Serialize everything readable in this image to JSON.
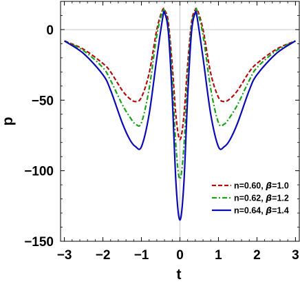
{
  "chart_data": {
    "type": "line",
    "title": "",
    "xlabel": "t",
    "ylabel": "p",
    "xlim": [
      -3.1,
      3.1
    ],
    "ylim": [
      -150,
      20
    ],
    "x_ticks": [
      -3,
      -2,
      -1,
      0,
      1,
      2,
      3
    ],
    "x_tick_labels": [
      "−3",
      "−2",
      "−1",
      "0",
      "1",
      "2",
      "3"
    ],
    "y_ticks": [
      0,
      -50,
      -100,
      -150
    ],
    "y_tick_labels": [
      "0",
      "−50",
      "−100",
      "−150"
    ],
    "grid": false,
    "reference_lines": {
      "x": 0,
      "y": 0
    },
    "legend_placement": "bottom-right",
    "series": [
      {
        "name": "n=0.60, β=1.0",
        "legend_parts": [
          "n=0.60, ",
          "β",
          "=1.0"
        ],
        "color": "#b50d0d",
        "style": "dashed",
        "x": [
          -3,
          -2.5,
          -2,
          -1.8,
          -1.5,
          -1.3,
          -1.15,
          -1.0,
          -0.8,
          -0.6,
          -0.45,
          -0.38,
          -0.3,
          -0.2,
          -0.1,
          0,
          0.1,
          0.2,
          0.3,
          0.38,
          0.45,
          0.6,
          0.8,
          1.0,
          1.15,
          1.3,
          1.5,
          1.8,
          2,
          2.5,
          3
        ],
        "y": [
          -8,
          -14,
          -24,
          -30,
          -43,
          -49,
          -51,
          -48,
          -31,
          0,
          14,
          13,
          5,
          -25,
          -62,
          -78,
          -62,
          -25,
          5,
          13,
          14,
          0,
          -31,
          -48,
          -51,
          -49,
          -43,
          -30,
          -24,
          -14,
          -8
        ]
      },
      {
        "name": "n=0.62, β=1.2",
        "legend_parts": [
          "n=0.62, ",
          "β",
          "=1.2"
        ],
        "color": "#1aa31a",
        "style": "dashdot",
        "x": [
          -3,
          -2.5,
          -2,
          -1.8,
          -1.5,
          -1.3,
          -1.15,
          -1.0,
          -0.8,
          -0.6,
          -0.45,
          -0.4,
          -0.3,
          -0.2,
          -0.1,
          0,
          0.1,
          0.2,
          0.3,
          0.4,
          0.45,
          0.6,
          0.8,
          1.0,
          1.15,
          1.3,
          1.5,
          1.8,
          2,
          2.5,
          3
        ],
        "y": [
          -8,
          -15,
          -27,
          -36,
          -53,
          -62,
          -67,
          -66,
          -42,
          -4,
          13,
          13,
          2,
          -35,
          -84,
          -106,
          -84,
          -35,
          2,
          13,
          13,
          -4,
          -42,
          -66,
          -67,
          -62,
          -53,
          -36,
          -27,
          -15,
          -8
        ]
      },
      {
        "name": "n=0.64, β=1.4",
        "legend_parts": [
          "n=0.64, ",
          "β",
          "=1.4"
        ],
        "color": "#0a0ab4",
        "style": "solid",
        "x": [
          -3,
          -2.5,
          -2,
          -1.8,
          -1.5,
          -1.3,
          -1.15,
          -1.0,
          -0.8,
          -0.6,
          -0.45,
          -0.4,
          -0.3,
          -0.2,
          -0.1,
          0,
          0.1,
          0.2,
          0.3,
          0.4,
          0.45,
          0.6,
          0.8,
          1.0,
          1.15,
          1.3,
          1.5,
          1.8,
          2,
          2.5,
          3
        ],
        "y": [
          -8,
          -17,
          -32,
          -43,
          -66,
          -78,
          -83,
          -83,
          -60,
          -20,
          8,
          12,
          -2,
          -48,
          -110,
          -135,
          -110,
          -48,
          -2,
          12,
          8,
          -20,
          -60,
          -83,
          -83,
          -78,
          -66,
          -43,
          -32,
          -17,
          -8
        ]
      }
    ]
  }
}
